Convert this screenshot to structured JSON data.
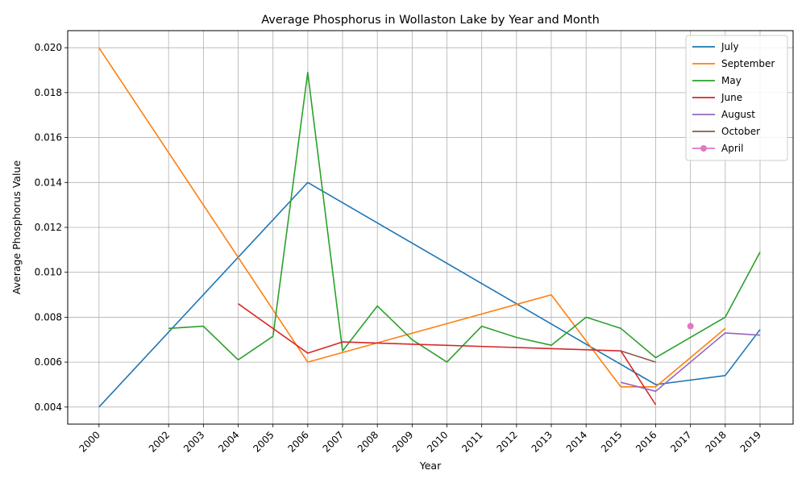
{
  "chart_data": {
    "type": "line",
    "title": "Average Phosphorus in Wollaston Lake by Year and Month",
    "xlabel": "Year",
    "ylabel": "Average Phosphorus Value",
    "xlim": [
      1999.1,
      2019.95
    ],
    "ylim": [
      0.00324,
      0.02076
    ],
    "yticks": [
      0.004,
      0.006,
      0.008,
      0.01,
      0.012,
      0.014,
      0.016,
      0.018,
      0.02
    ],
    "ytick_labels": [
      "0.004",
      "0.006",
      "0.008",
      "0.010",
      "0.012",
      "0.014",
      "0.016",
      "0.018",
      "0.020"
    ],
    "xticks": [
      2000,
      2002,
      2003,
      2004,
      2005,
      2006,
      2007,
      2008,
      2009,
      2010,
      2011,
      2012,
      2013,
      2014,
      2015,
      2016,
      2017,
      2018,
      2019
    ],
    "xtick_labels": [
      "2000",
      "2002",
      "2003",
      "2004",
      "2005",
      "2006",
      "2007",
      "2008",
      "2009",
      "2010",
      "2011",
      "2012",
      "2013",
      "2014",
      "2015",
      "2016",
      "2017",
      "2018",
      "2019"
    ],
    "grid": true,
    "legend_position": "top-right",
    "series": [
      {
        "name": "July",
        "color": "#1f77b4",
        "marker": false,
        "x": [
          2000,
          2006,
          2016,
          2018,
          2019
        ],
        "y": [
          0.004,
          0.014,
          0.005,
          0.0054,
          0.00745
        ]
      },
      {
        "name": "September",
        "color": "#ff7f0e",
        "marker": false,
        "x": [
          2000,
          2006,
          2013,
          2015,
          2016,
          2018
        ],
        "y": [
          0.02,
          0.006,
          0.009,
          0.0049,
          0.0049,
          0.0075
        ]
      },
      {
        "name": "May",
        "color": "#2ca02c",
        "marker": false,
        "x": [
          2002,
          2003,
          2004,
          2005,
          2006,
          2007,
          2008,
          2009,
          2010,
          2011,
          2012,
          2013,
          2014,
          2015,
          2016,
          2018,
          2019
        ],
        "y": [
          0.0075,
          0.0076,
          0.0061,
          0.00715,
          0.0189,
          0.0065,
          0.0085,
          0.007,
          0.006,
          0.0076,
          0.0071,
          0.00675,
          0.008,
          0.0075,
          0.0062,
          0.008,
          0.0109
        ]
      },
      {
        "name": "June",
        "color": "#d62728",
        "marker": false,
        "x": [
          2004,
          2006,
          2007,
          2015,
          2016
        ],
        "y": [
          0.0086,
          0.0064,
          0.0069,
          0.0065,
          0.0041
        ]
      },
      {
        "name": "August",
        "color": "#9467bd",
        "marker": false,
        "x": [
          2015,
          2016,
          2018,
          2019
        ],
        "y": [
          0.0051,
          0.0047,
          0.0073,
          0.0072
        ]
      },
      {
        "name": "October",
        "color": "#8c564b",
        "marker": false,
        "x": [
          2015,
          2016
        ],
        "y": [
          0.0065,
          0.006
        ]
      },
      {
        "name": "April",
        "color": "#e377c2",
        "marker": true,
        "x": [
          2017
        ],
        "y": [
          0.0076
        ]
      }
    ]
  }
}
